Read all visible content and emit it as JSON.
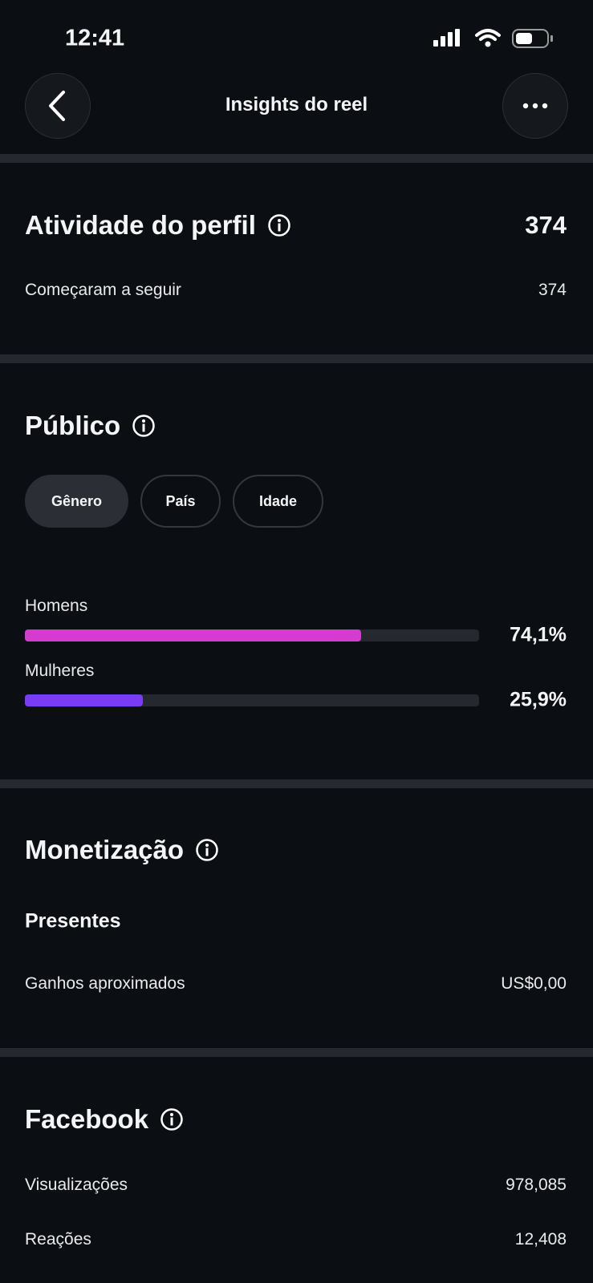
{
  "status_bar": {
    "time": "12:41"
  },
  "header": {
    "title": "Insights do reel"
  },
  "profile_activity": {
    "title": "Atividade do perfil",
    "total": "374",
    "rows": [
      {
        "label": "Começaram a seguir",
        "value": "374"
      }
    ]
  },
  "audience": {
    "title": "Público",
    "tabs": [
      "Gênero",
      "País",
      "Idade"
    ],
    "selected_tab": 0,
    "gender": {
      "categories": [
        "Homens",
        "Mulheres"
      ],
      "values": [
        74.1,
        25.9
      ],
      "value_labels": [
        "74,1%",
        "25,9%"
      ],
      "colors": [
        "#d43ccf",
        "#7a3cf2"
      ],
      "xlim": [
        0,
        100
      ]
    }
  },
  "monetization": {
    "title": "Monetização",
    "subtitle": "Presentes",
    "rows": [
      {
        "label": "Ganhos aproximados",
        "value": "US$0,00"
      }
    ]
  },
  "facebook": {
    "title": "Facebook",
    "rows": [
      {
        "label": "Visualizações",
        "value": "978,085"
      },
      {
        "label": "Reações",
        "value": "12,408"
      }
    ]
  }
}
